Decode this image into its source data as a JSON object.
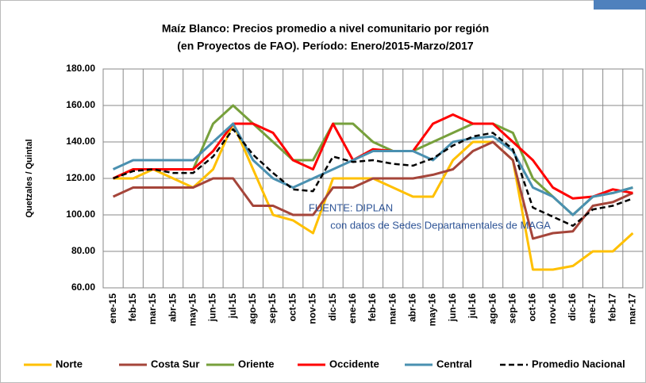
{
  "chart_data": {
    "type": "line",
    "title": "Maíz Blanco: Precios promedio a nivel comunitario por región",
    "subtitle": "(en Proyectos de FAO). Período: Enero/2015-Marzo/2017",
    "y_label": "Quetzales / Quintal",
    "annotations": [
      "FUENTE: DIPLAN",
      "con datos de Sedes Departamentales de MAGA"
    ],
    "categories": [
      "ene-15",
      "feb-15",
      "mar-15",
      "abr-15",
      "may-15",
      "jun-15",
      "jul-15",
      "ago-15",
      "sep-15",
      "oct-15",
      "nov-15",
      "dic-15",
      "ene-16",
      "feb-16",
      "mar-16",
      "abr-16",
      "may-16",
      "jun-16",
      "jul-16",
      "ago-16",
      "sep-16",
      "oct-16",
      "nov-16",
      "dic-16",
      "ene-17",
      "feb-17",
      "mar-17"
    ],
    "ylim": [
      60,
      180
    ],
    "yticks": [
      {
        "value": 60,
        "label": "60.00"
      },
      {
        "value": 80,
        "label": "80.00"
      },
      {
        "value": 100,
        "label": "100.00"
      },
      {
        "value": 120,
        "label": "120.00"
      },
      {
        "value": 140,
        "label": "140.00"
      },
      {
        "value": 160,
        "label": "160.00"
      },
      {
        "value": 180,
        "label": "180.00"
      }
    ],
    "grid": true,
    "legend": "bottom",
    "series": [
      {
        "name": "Norte",
        "color": "#ffc000",
        "values": [
          120,
          120,
          125,
          120,
          115,
          125,
          150,
          125,
          100,
          97,
          90,
          120,
          120,
          120,
          115,
          110,
          110,
          130,
          140,
          140,
          130,
          70,
          70,
          72,
          80,
          80,
          90
        ]
      },
      {
        "name": "Costa Sur",
        "color": "#a5453a",
        "values": [
          110,
          115,
          115,
          115,
          115,
          120,
          120,
          105,
          105,
          100,
          100,
          115,
          115,
          120,
          120,
          120,
          122,
          125,
          135,
          140,
          130,
          87,
          90,
          91,
          105,
          107,
          112
        ]
      },
      {
        "name": "Oriente",
        "color": "#77a03c",
        "values": [
          120,
          125,
          125,
          125,
          125,
          150,
          160,
          150,
          140,
          130,
          130,
          150,
          150,
          140,
          135,
          135,
          140,
          145,
          150,
          150,
          145,
          120,
          110,
          100,
          110,
          112,
          115
        ]
      },
      {
        "name": "Occidente",
        "color": "#ff0000",
        "values": [
          120,
          125,
          125,
          125,
          125,
          135,
          150,
          150,
          145,
          130,
          125,
          150,
          130,
          136,
          135,
          135,
          150,
          155,
          150,
          150,
          140,
          130,
          115,
          109,
          110,
          114,
          112
        ]
      },
      {
        "name": "Central",
        "color": "#4a90b0",
        "values": [
          125,
          130,
          130,
          130,
          130,
          140,
          150,
          130,
          120,
          115,
          120,
          125,
          130,
          135,
          135,
          135,
          130,
          140,
          142,
          143,
          135,
          115,
          110,
          100,
          110,
          112,
          115
        ]
      },
      {
        "name": "Promedio Nacional",
        "color": "#000000",
        "dashed": true,
        "values": [
          120,
          124,
          125,
          123,
          123,
          132,
          147,
          133,
          123,
          114,
          113,
          132,
          129,
          130,
          128,
          127,
          131,
          138,
          143,
          145,
          136,
          104,
          99,
          94,
          103,
          105,
          109
        ]
      }
    ]
  }
}
